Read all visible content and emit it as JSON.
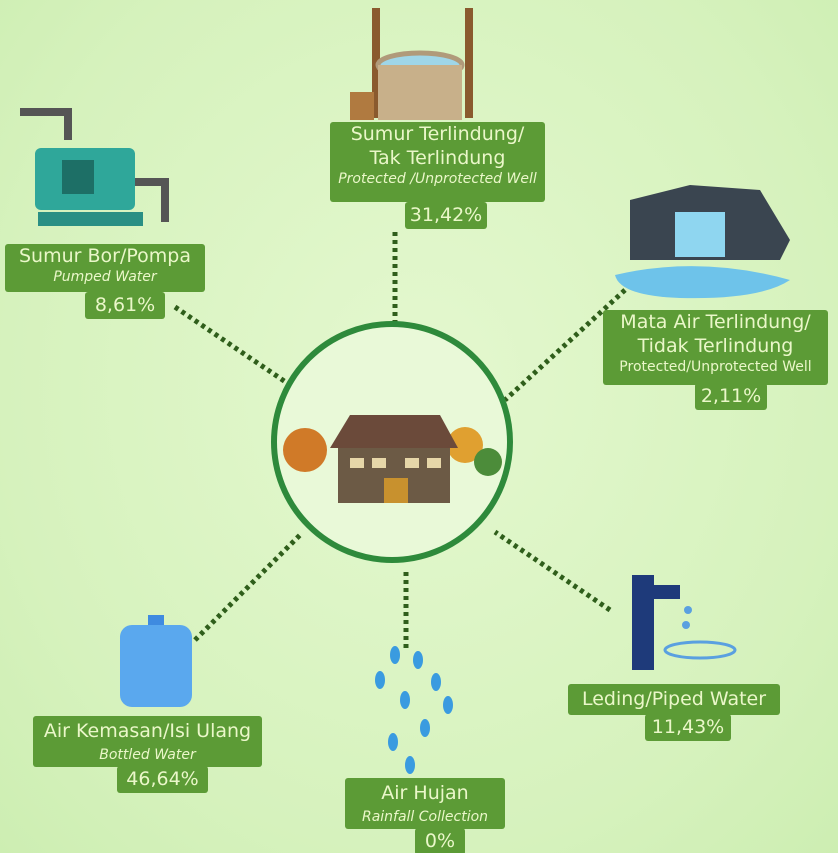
{
  "nodes": [
    {
      "title": [
        "Sumur Terlindung/",
        "Tak Terlindung"
      ],
      "subtitle": "Protected /Unprotected Well",
      "value": "31,42%"
    },
    {
      "title": [
        "Sumur Bor/Pompa"
      ],
      "subtitle": "Pumped Water",
      "value": "8,61%"
    },
    {
      "title": [
        "Mata Air Terlindung/",
        "Tidak Terlindung"
      ],
      "subtitle": "Protected/Unprotected Well",
      "value": "2,11%"
    },
    {
      "title": [
        "Leding/Piped Water"
      ],
      "value": "11,43%"
    },
    {
      "title": [
        "Air Kemasan/Isi Ulang"
      ],
      "subtitle": "Bottled Water",
      "value": "46,64%"
    },
    {
      "title": [
        "Air Hujan"
      ],
      "subtitle": "Rainfall Collection",
      "value": "0%"
    }
  ]
}
